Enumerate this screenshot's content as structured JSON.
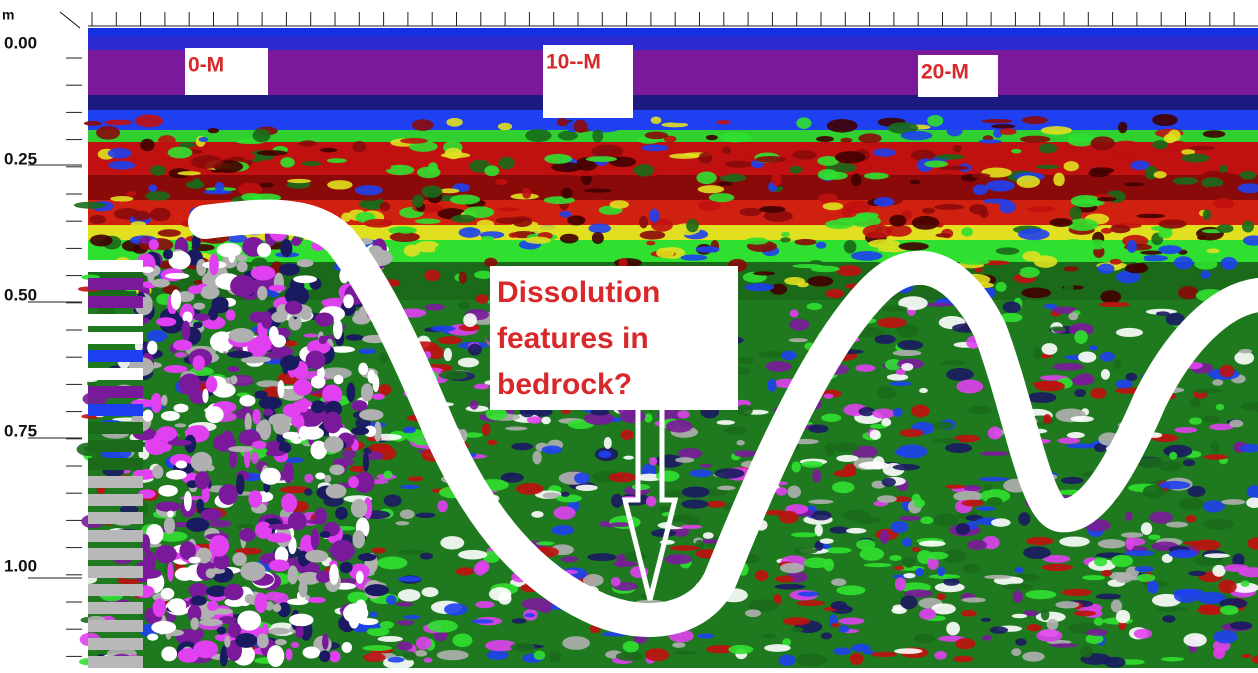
{
  "axis": {
    "unit": "m",
    "labels": [
      "0.00",
      "0.25",
      "0.50",
      "0.75",
      "1.00"
    ]
  },
  "markers": [
    "0-M",
    "10--M",
    "20-M"
  ],
  "annotation": {
    "lines": [
      "Dissolution",
      "features in",
      "bedrock?"
    ]
  }
}
